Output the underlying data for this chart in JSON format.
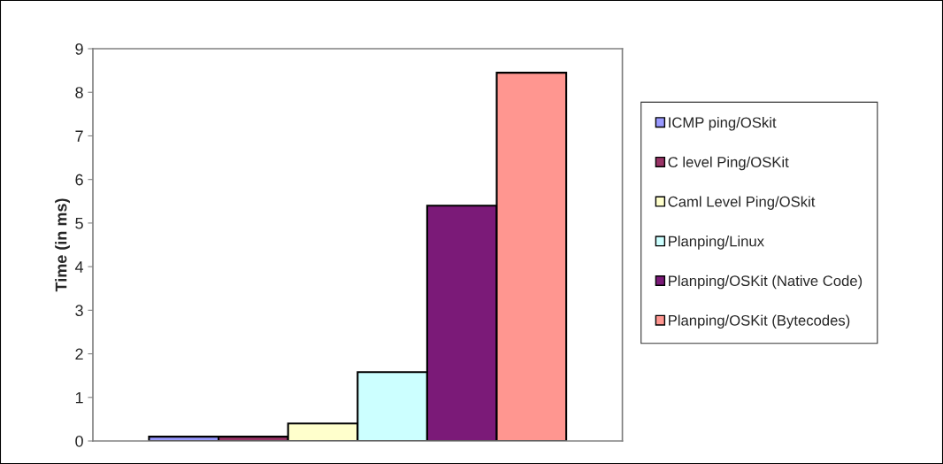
{
  "chart_data": {
    "type": "bar",
    "ylabel": "Time (in ms)",
    "categories": [
      null
    ],
    "series": [
      {
        "name": "ICMP ping/OSkit",
        "color": "#9999ff",
        "values": [
          0.1
        ]
      },
      {
        "name": "C level Ping/OSKit",
        "color": "#993366",
        "values": [
          0.1
        ]
      },
      {
        "name": "Caml Level Ping/OSkit",
        "color": "#ffffcc",
        "values": [
          0.4
        ]
      },
      {
        "name": "Planping/Linux",
        "color": "#ccffff",
        "values": [
          1.58
        ]
      },
      {
        "name": "Planping/OSKit (Native Code)",
        "color": "#7b1a78",
        "values": [
          5.4
        ]
      },
      {
        "name": "Planping/OSKit (Bytecodes)",
        "color": "#ff9690",
        "values": [
          8.45
        ]
      }
    ],
    "ylim": [
      0,
      9
    ],
    "yticks": [
      0,
      1,
      2,
      3,
      4,
      5,
      6,
      7,
      8,
      9
    ],
    "grid": false,
    "legend": "right"
  }
}
